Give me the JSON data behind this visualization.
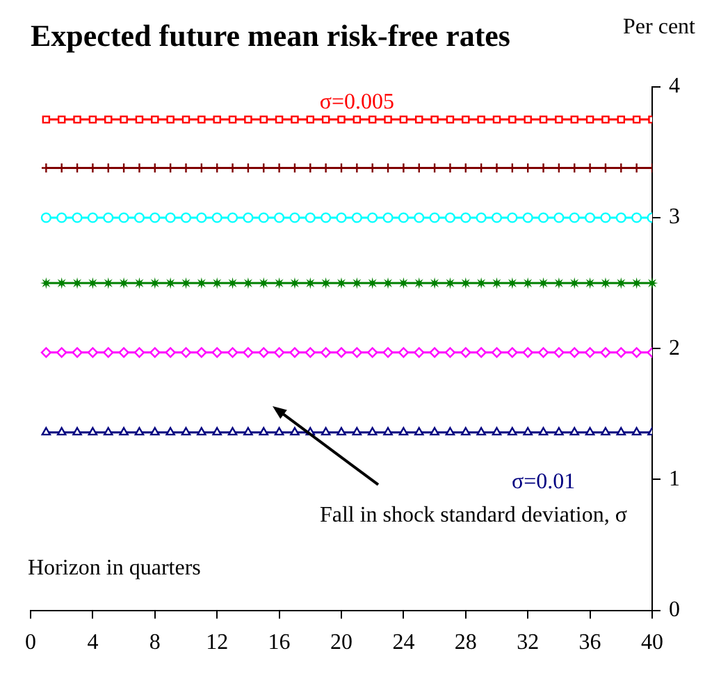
{
  "chart_data": {
    "type": "line",
    "title": "Expected future mean risk-free rates",
    "ylabel": "Per cent",
    "xlabel": "Horizon in quarters",
    "x": [
      1,
      2,
      3,
      4,
      5,
      6,
      7,
      8,
      9,
      10,
      11,
      12,
      13,
      14,
      15,
      16,
      17,
      18,
      19,
      20,
      21,
      22,
      23,
      24,
      25,
      26,
      27,
      28,
      29,
      30,
      31,
      32,
      33,
      34,
      35,
      36,
      37,
      38,
      39,
      40
    ],
    "series": [
      {
        "name": "σ=0.005",
        "color": "#ff0000",
        "marker": "square",
        "values": [
          3.75,
          3.75,
          3.75,
          3.75,
          3.75,
          3.75,
          3.75,
          3.75,
          3.75,
          3.75,
          3.75,
          3.75,
          3.75,
          3.75,
          3.75,
          3.75,
          3.75,
          3.75,
          3.75,
          3.75,
          3.75,
          3.75,
          3.75,
          3.75,
          3.75,
          3.75,
          3.75,
          3.75,
          3.75,
          3.75,
          3.75,
          3.75,
          3.75,
          3.75,
          3.75,
          3.75,
          3.75,
          3.75,
          3.75,
          3.75
        ]
      },
      {
        "color": "#800000",
        "marker": "cross",
        "values": [
          3.38,
          3.38,
          3.38,
          3.38,
          3.38,
          3.38,
          3.38,
          3.38,
          3.38,
          3.38,
          3.38,
          3.38,
          3.38,
          3.38,
          3.38,
          3.38,
          3.38,
          3.38,
          3.38,
          3.38,
          3.38,
          3.38,
          3.38,
          3.38,
          3.38,
          3.38,
          3.38,
          3.38,
          3.38,
          3.38,
          3.38,
          3.38,
          3.38,
          3.38,
          3.38,
          3.38,
          3.38,
          3.38,
          3.38,
          3.38
        ]
      },
      {
        "color": "#00ffff",
        "marker": "circle",
        "values": [
          3.0,
          3.0,
          3.0,
          3.0,
          3.0,
          3.0,
          3.0,
          3.0,
          3.0,
          3.0,
          3.0,
          3.0,
          3.0,
          3.0,
          3.0,
          3.0,
          3.0,
          3.0,
          3.0,
          3.0,
          3.0,
          3.0,
          3.0,
          3.0,
          3.0,
          3.0,
          3.0,
          3.0,
          3.0,
          3.0,
          3.0,
          3.0,
          3.0,
          3.0,
          3.0,
          3.0,
          3.0,
          3.0,
          3.0,
          3.0
        ]
      },
      {
        "color": "#008000",
        "marker": "star",
        "values": [
          2.5,
          2.5,
          2.5,
          2.5,
          2.5,
          2.5,
          2.5,
          2.5,
          2.5,
          2.5,
          2.5,
          2.5,
          2.5,
          2.5,
          2.5,
          2.5,
          2.5,
          2.5,
          2.5,
          2.5,
          2.5,
          2.5,
          2.5,
          2.5,
          2.5,
          2.5,
          2.5,
          2.5,
          2.5,
          2.5,
          2.5,
          2.5,
          2.5,
          2.5,
          2.5,
          2.5,
          2.5,
          2.5,
          2.5,
          2.5
        ]
      },
      {
        "color": "#ff00ff",
        "marker": "diamond",
        "values": [
          1.97,
          1.97,
          1.97,
          1.97,
          1.97,
          1.97,
          1.97,
          1.97,
          1.97,
          1.97,
          1.97,
          1.97,
          1.97,
          1.97,
          1.97,
          1.97,
          1.97,
          1.97,
          1.97,
          1.97,
          1.97,
          1.97,
          1.97,
          1.97,
          1.97,
          1.97,
          1.97,
          1.97,
          1.97,
          1.97,
          1.97,
          1.97,
          1.97,
          1.97,
          1.97,
          1.97,
          1.97,
          1.97,
          1.97,
          1.97
        ]
      },
      {
        "name": "σ=0.01",
        "color": "#000080",
        "marker": "triangle",
        "values": [
          1.36,
          1.36,
          1.36,
          1.36,
          1.36,
          1.36,
          1.36,
          1.36,
          1.36,
          1.36,
          1.36,
          1.36,
          1.36,
          1.36,
          1.36,
          1.36,
          1.36,
          1.36,
          1.36,
          1.36,
          1.36,
          1.36,
          1.36,
          1.36,
          1.36,
          1.36,
          1.36,
          1.36,
          1.36,
          1.36,
          1.36,
          1.36,
          1.36,
          1.36,
          1.36,
          1.36,
          1.36,
          1.36,
          1.36,
          1.36
        ]
      }
    ],
    "xlim": [
      0,
      40
    ],
    "xticks": [
      0,
      4,
      8,
      12,
      16,
      20,
      24,
      28,
      32,
      36,
      40
    ],
    "ylim": [
      0,
      4
    ],
    "yticks": [
      0,
      1,
      2,
      3,
      4
    ],
    "grid": false,
    "legend": false,
    "line_style": "solid",
    "annotations": [
      "Fall in shock standard deviation, σ"
    ]
  }
}
